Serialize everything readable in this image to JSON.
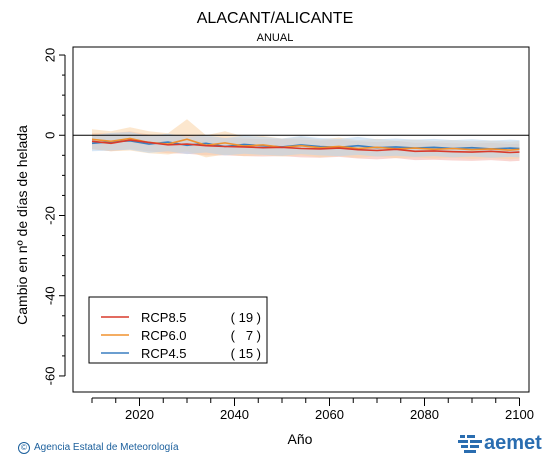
{
  "chart_data": {
    "type": "line",
    "title": "ALACANT/ALICANTE",
    "subtitle": "ANUAL",
    "xlabel": "Año",
    "ylabel": "Cambio en nº de días de helada",
    "xlim": [
      2006,
      2102
    ],
    "ylim": [
      -64,
      22
    ],
    "x_ticks": [
      2020,
      2040,
      2060,
      2080,
      2100
    ],
    "y_ticks": [
      20,
      0,
      -20,
      -40,
      -60
    ],
    "zero_line": true,
    "legend_position": "bottom-left",
    "series": [
      {
        "name": "RCP8.5",
        "count": "( 19 )",
        "color": "#d93a2b",
        "band_color": "#f4b3ac",
        "x": [
          2010,
          2014,
          2018,
          2022,
          2026,
          2030,
          2034,
          2038,
          2042,
          2046,
          2050,
          2054,
          2058,
          2062,
          2066,
          2070,
          2074,
          2078,
          2082,
          2086,
          2090,
          2094,
          2098,
          2100
        ],
        "values": [
          -1.5,
          -2.0,
          -1.2,
          -1.8,
          -2.4,
          -2.2,
          -2.6,
          -2.8,
          -2.9,
          -3.1,
          -3.0,
          -3.3,
          -3.4,
          -3.2,
          -3.6,
          -3.8,
          -3.5,
          -4.0,
          -3.9,
          -4.1,
          -4.2,
          -4.0,
          -4.3,
          -4.2
        ],
        "band_low": [
          -3.5,
          -4.0,
          -3.5,
          -4.0,
          -4.5,
          -4.6,
          -5.0,
          -5.0,
          -5.2,
          -5.3,
          -5.2,
          -5.5,
          -5.6,
          -5.4,
          -5.8,
          -6.0,
          -5.7,
          -6.2,
          -6.1,
          -6.3,
          -6.4,
          -6.2,
          -6.5,
          -6.4
        ],
        "band_high": [
          0.5,
          0.5,
          1.0,
          0.2,
          -0.3,
          0.0,
          -0.4,
          -0.6,
          -0.8,
          -1.0,
          -0.9,
          -1.1,
          -1.3,
          -1.1,
          -1.5,
          -1.7,
          -1.4,
          -1.9,
          -1.8,
          -2.0,
          -2.1,
          -1.9,
          -2.2,
          -2.1
        ]
      },
      {
        "name": "RCP6.0",
        "count": "(   7 )",
        "color": "#f0922e",
        "band_color": "#f9d3a6",
        "x": [
          2010,
          2014,
          2018,
          2022,
          2026,
          2030,
          2034,
          2038,
          2042,
          2046,
          2050,
          2054,
          2058,
          2062,
          2066,
          2070,
          2074,
          2078,
          2082,
          2086,
          2090,
          2094,
          2098,
          2100
        ],
        "values": [
          -1.0,
          -1.5,
          -0.8,
          -1.8,
          -2.2,
          -1.0,
          -2.5,
          -1.9,
          -2.7,
          -2.4,
          -3.0,
          -2.6,
          -3.1,
          -2.8,
          -3.3,
          -3.0,
          -3.4,
          -3.2,
          -3.5,
          -3.3,
          -3.6,
          -3.4,
          -3.7,
          -3.5
        ],
        "band_low": [
          -3.5,
          -4.0,
          -3.8,
          -4.5,
          -4.8,
          -4.0,
          -5.5,
          -4.8,
          -5.2,
          -5.0,
          -5.3,
          -5.0,
          -5.5,
          -5.2,
          -5.6,
          -5.3,
          -5.7,
          -5.5,
          -5.8,
          -5.6,
          -5.9,
          -5.7,
          -6.0,
          -5.8
        ],
        "band_high": [
          1.5,
          1.0,
          2.0,
          1.0,
          0.5,
          4.0,
          0.0,
          1.0,
          -0.3,
          -0.2,
          -0.8,
          -0.5,
          -1.0,
          -0.6,
          -1.2,
          -0.9,
          -1.3,
          -1.1,
          -1.4,
          -1.2,
          -1.5,
          -1.3,
          -1.6,
          -1.4
        ]
      },
      {
        "name": "RCP4.5",
        "count": "( 15 )",
        "color": "#3a7fc1",
        "band_color": "#b7d3ee",
        "x": [
          2010,
          2014,
          2018,
          2022,
          2026,
          2030,
          2034,
          2038,
          2042,
          2046,
          2050,
          2054,
          2058,
          2062,
          2066,
          2070,
          2074,
          2078,
          2082,
          2086,
          2090,
          2094,
          2098,
          2100
        ],
        "values": [
          -2.0,
          -1.6,
          -1.4,
          -2.2,
          -1.7,
          -2.5,
          -2.0,
          -2.8,
          -2.3,
          -2.6,
          -2.9,
          -2.4,
          -2.8,
          -3.0,
          -2.6,
          -3.1,
          -2.9,
          -3.2,
          -3.0,
          -3.3,
          -3.1,
          -3.4,
          -3.2,
          -3.3
        ],
        "band_low": [
          -4.0,
          -3.8,
          -3.6,
          -4.4,
          -4.0,
          -4.7,
          -4.3,
          -5.0,
          -4.6,
          -4.9,
          -5.1,
          -4.7,
          -5.0,
          -5.2,
          -4.9,
          -5.3,
          -5.1,
          -5.4,
          -5.2,
          -5.5,
          -5.3,
          -5.6,
          -5.4,
          -5.5
        ],
        "band_high": [
          0.0,
          0.6,
          0.8,
          -0.2,
          0.4,
          -0.4,
          0.0,
          -0.7,
          -0.1,
          -0.4,
          -0.8,
          -0.2,
          -0.7,
          -0.9,
          -0.4,
          -1.0,
          -0.8,
          -1.1,
          -0.9,
          -1.2,
          -1.0,
          -1.3,
          -1.1,
          -1.2
        ]
      }
    ]
  },
  "footer": {
    "credit": "Agencia Estatal de Meteorología",
    "copyright_symbol": "©",
    "logo_text": "aemet",
    "logo_icon": "aemet-logo-icon"
  }
}
